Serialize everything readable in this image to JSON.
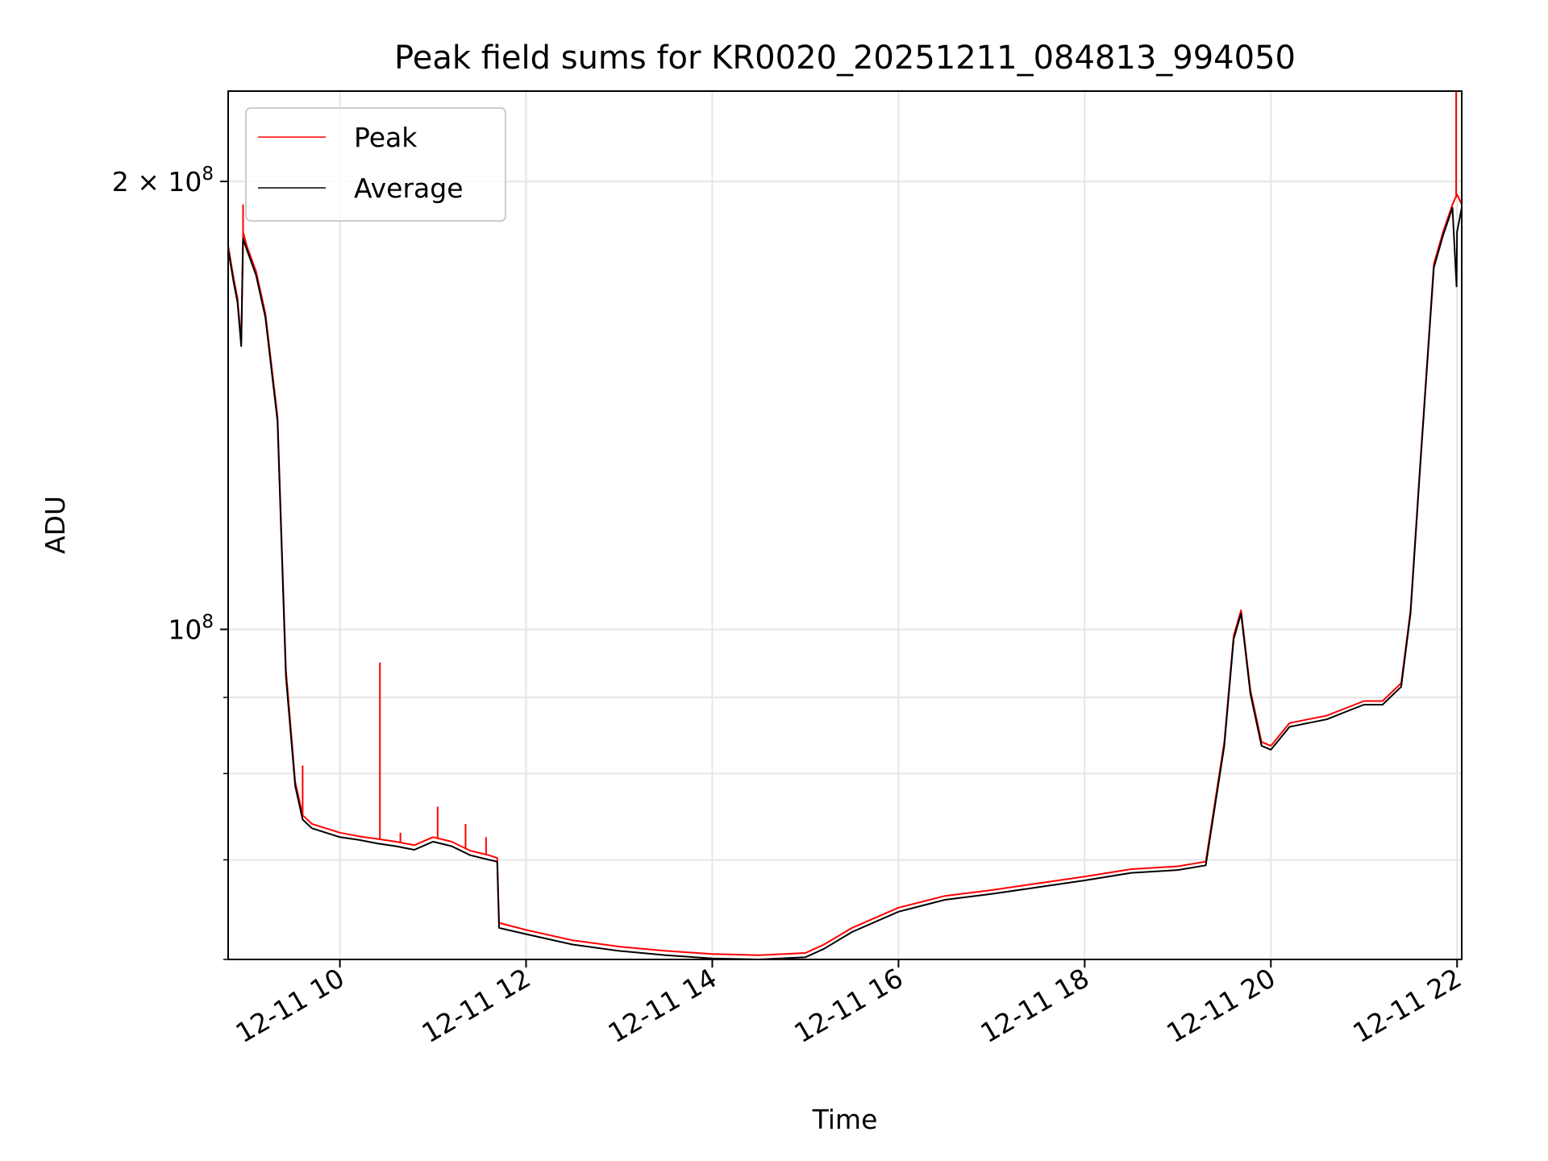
{
  "chart_data": {
    "type": "line",
    "title": "Peak field sums for KR0020_20251211_084813_994050",
    "xlabel": "Time",
    "ylabel": "ADU",
    "yscale": "log",
    "xlim_hours": [
      8.8,
      22.05
    ],
    "ylim": [
      60000000,
      230000000
    ],
    "grid": true,
    "legend_location": "upper left",
    "x_ticks": [
      {
        "value": 10,
        "label": "12-11 10"
      },
      {
        "value": 12,
        "label": "12-11 12"
      },
      {
        "value": 14,
        "label": "12-11 14"
      },
      {
        "value": 16,
        "label": "12-11 16"
      },
      {
        "value": 18,
        "label": "12-11 18"
      },
      {
        "value": 20,
        "label": "12-11 20"
      },
      {
        "value": 22,
        "label": "12-11 22"
      }
    ],
    "y_major_ticks": [
      {
        "value": 100000000,
        "mantissa": "",
        "base": "10",
        "exp": "8"
      },
      {
        "value": 200000000,
        "mantissa": "2 × ",
        "base": "10",
        "exp": "8"
      }
    ],
    "y_minor_ticks": [
      60000000,
      70000000,
      80000000,
      90000000
    ],
    "series": [
      {
        "name": "Peak",
        "color": "#ff0000",
        "x_hours": [
          8.8,
          8.86,
          8.9,
          8.94,
          8.96,
          9.0,
          9.1,
          9.2,
          9.33,
          9.42,
          9.52,
          9.6,
          9.7,
          9.85,
          10.0,
          10.2,
          10.4,
          10.6,
          10.8,
          11.0,
          11.2,
          11.4,
          11.6,
          11.69,
          11.71,
          12.0,
          12.5,
          13.0,
          13.5,
          14.0,
          14.5,
          15.0,
          15.2,
          15.5,
          16.0,
          16.5,
          17.0,
          17.5,
          18.0,
          18.5,
          19.0,
          19.3,
          19.5,
          19.6,
          19.68,
          19.78,
          19.9,
          20.0,
          20.2,
          20.4,
          20.6,
          20.8,
          21.0,
          21.2,
          21.4,
          21.5,
          21.6,
          21.75,
          21.85,
          21.95,
          22.0,
          22.05
        ],
        "y": [
          181000000,
          172000000,
          167000000,
          156000000,
          185000000,
          181000000,
          174000000,
          163000000,
          139000000,
          94000000,
          79000000,
          75000000,
          74000000,
          73500000,
          73000000,
          72600000,
          72300000,
          72000000,
          71600000,
          72500000,
          72000000,
          71000000,
          70500000,
          70200000,
          63500000,
          62800000,
          61800000,
          61200000,
          60800000,
          60500000,
          60400000,
          60600000,
          61400000,
          63000000,
          65000000,
          66200000,
          66800000,
          67500000,
          68200000,
          69000000,
          69300000,
          69800000,
          84000000,
          99000000,
          103000000,
          91000000,
          84000000,
          83500000,
          86500000,
          87000000,
          87500000,
          88500000,
          89500000,
          89500000,
          92000000,
          103000000,
          128000000,
          176000000,
          185000000,
          193000000,
          196000000,
          193000000
        ],
        "spikes": [
          {
            "x": 8.96,
            "y": 193000000
          },
          {
            "x": 9.6,
            "y": 81000000
          },
          {
            "x": 10.43,
            "y": 95000000
          },
          {
            "x": 10.65,
            "y": 73000000
          },
          {
            "x": 11.05,
            "y": 76000000
          },
          {
            "x": 11.35,
            "y": 74000000
          },
          {
            "x": 11.57,
            "y": 72500000
          },
          {
            "x": 21.99,
            "y": 232000000
          }
        ]
      },
      {
        "name": "Average",
        "color": "#000000",
        "x_hours": [
          8.8,
          8.86,
          8.9,
          8.94,
          8.96,
          9.0,
          9.1,
          9.2,
          9.33,
          9.42,
          9.52,
          9.6,
          9.7,
          9.85,
          10.0,
          10.2,
          10.4,
          10.6,
          10.8,
          11.0,
          11.2,
          11.4,
          11.6,
          11.69,
          11.71,
          12.0,
          12.5,
          13.0,
          13.5,
          14.0,
          14.5,
          15.0,
          15.2,
          15.5,
          16.0,
          16.5,
          17.0,
          17.5,
          18.0,
          18.5,
          19.0,
          19.3,
          19.5,
          19.6,
          19.68,
          19.78,
          19.9,
          20.0,
          20.2,
          20.4,
          20.6,
          20.8,
          21.0,
          21.2,
          21.4,
          21.5,
          21.6,
          21.75,
          21.85,
          21.95,
          21.995,
          22.0,
          22.05
        ],
        "y": [
          180000000,
          171000000,
          166000000,
          155000000,
          183000000,
          180000000,
          173000000,
          162000000,
          138000000,
          93000000,
          78500000,
          74500000,
          73500000,
          73000000,
          72500000,
          72200000,
          71800000,
          71500000,
          71100000,
          72000000,
          71500000,
          70500000,
          70000000,
          69800000,
          63000000,
          62400000,
          61400000,
          60800000,
          60400000,
          60100000,
          60000000,
          60200000,
          61000000,
          62600000,
          64600000,
          65800000,
          66400000,
          67100000,
          67800000,
          68600000,
          68900000,
          69400000,
          83500000,
          98500000,
          102500000,
          90500000,
          83500000,
          83000000,
          86000000,
          86500000,
          87000000,
          88000000,
          89000000,
          89000000,
          91500000,
          102500000,
          127500000,
          175000000,
          184000000,
          192000000,
          170000000,
          185000000,
          192000000
        ]
      }
    ]
  }
}
